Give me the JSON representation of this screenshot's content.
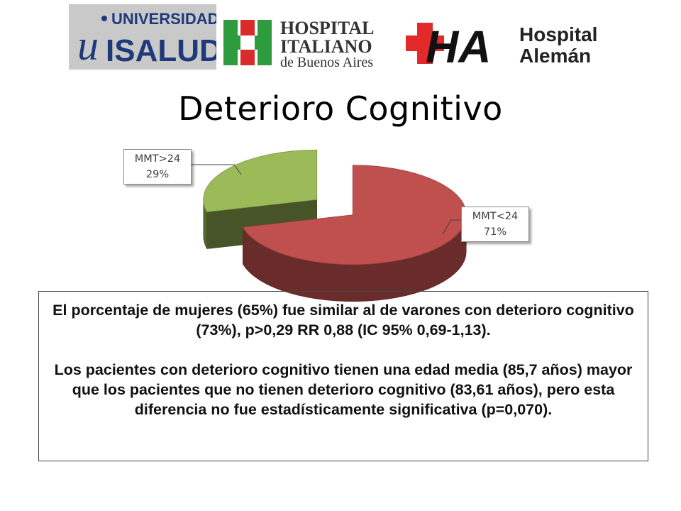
{
  "logos": {
    "universidad": {
      "top": "UNIVERSIDAD",
      "letter": "u",
      "name": "ISALUD"
    },
    "italiano": {
      "line1": "HOSPITAL",
      "line2": "ITALIANO",
      "line3": "de Buenos Aires"
    },
    "aleman": {
      "mark": "HA",
      "line1": "Hospital",
      "line2": "Alemán"
    }
  },
  "title": "Deterioro Cognitivo",
  "chart_data": {
    "type": "pie",
    "style": "3d-exploded",
    "slices": [
      {
        "label": "MMT<24",
        "percent": "71%",
        "value": 71,
        "color": "#c0504d"
      },
      {
        "label": "MMT>24",
        "percent": "29%",
        "value": 29,
        "color": "#9bbb59"
      }
    ]
  },
  "text": {
    "p1": "El porcentaje de mujeres (65%) fue similar al de varones con deterioro cognitivo (73%), p>0,29 RR 0,88 (IC 95% 0,69-1,13).",
    "p2": "Los pacientes con deterioro cognitivo tienen una edad media (85,7 años) mayor que los pacientes que no tienen deterioro cognitivo (83,61 años), pero esta diferencia no fue estadísticamente significativa (p=0,070)."
  }
}
